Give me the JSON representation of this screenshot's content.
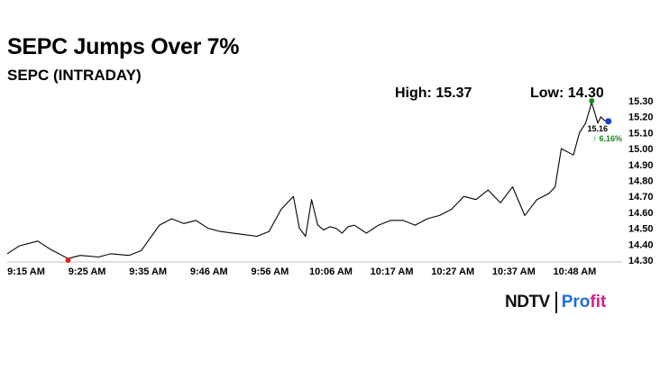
{
  "header": {
    "title": "SEPC Jumps Over 7%",
    "subtitle": "SEPC (INTRADAY)"
  },
  "stats": {
    "high_label": "High: 15.37",
    "low_label": "Low: 14.30"
  },
  "brand": {
    "ndtv": "NDTV",
    "profit_prefix": "Pro",
    "profit_suffix": "fit"
  },
  "colors": {
    "line": "#000000",
    "high_marker": "#1a8a1a",
    "low_marker": "#e02020",
    "last_marker": "#1a3ccf",
    "change_text": "#1a8a1a",
    "brand_blue": "#1e6fd9",
    "brand_pink": "#e0198a"
  },
  "chart_data": {
    "type": "line",
    "title": "SEPC (INTRADAY)",
    "xlabel": "",
    "ylabel": "",
    "ylim": [
      14.3,
      15.3
    ],
    "yticks": [
      "14.30",
      "14.40",
      "14.50",
      "14.60",
      "14.70",
      "14.80",
      "14.90",
      "15.00",
      "15.10",
      "15.20",
      "15.30"
    ],
    "xticks": [
      "9:15 AM",
      "9:25 AM",
      "9:35 AM",
      "9:46 AM",
      "9:56 AM",
      "10:06 AM",
      "10:17 AM",
      "10:27 AM",
      "10:37 AM",
      "10:48 AM"
    ],
    "grid": false,
    "x": [
      "9:15",
      "9:17",
      "9:20",
      "9:22",
      "9:25",
      "9:27",
      "9:30",
      "9:32",
      "9:35",
      "9:37",
      "9:40",
      "9:42",
      "9:44",
      "9:46",
      "9:48",
      "9:50",
      "9:52",
      "9:54",
      "9:56",
      "9:58",
      "10:00",
      "10:02",
      "10:03",
      "10:04",
      "10:05",
      "10:06",
      "10:07",
      "10:08",
      "10:09",
      "10:10",
      "10:11",
      "10:12",
      "10:14",
      "10:16",
      "10:18",
      "10:20",
      "10:22",
      "10:24",
      "10:26",
      "10:28",
      "10:30",
      "10:32",
      "10:34",
      "10:36",
      "10:38",
      "10:40",
      "10:42",
      "10:44",
      "10:45",
      "10:46",
      "10:48",
      "10:49",
      "10:50",
      "10:51",
      "10:52",
      "10:52.5",
      "10:53",
      "10:54"
    ],
    "values": [
      14.34,
      14.39,
      14.42,
      14.37,
      14.31,
      14.33,
      14.32,
      14.34,
      14.33,
      14.36,
      14.52,
      14.56,
      14.53,
      14.55,
      14.5,
      14.48,
      14.47,
      14.46,
      14.45,
      14.48,
      14.62,
      14.7,
      14.5,
      14.45,
      14.68,
      14.52,
      14.49,
      14.51,
      14.5,
      14.47,
      14.51,
      14.52,
      14.47,
      14.52,
      14.55,
      14.55,
      14.52,
      14.56,
      14.58,
      14.62,
      14.7,
      14.68,
      14.74,
      14.66,
      14.76,
      14.58,
      14.68,
      14.72,
      14.76,
      15.0,
      14.96,
      15.1,
      15.16,
      15.29,
      15.16,
      15.2,
      15.18,
      15.16
    ],
    "high_point": {
      "x": "10:51",
      "value": 15.3
    },
    "low_point": {
      "x": "9:25",
      "value": 14.3
    },
    "last_point": {
      "x": "10:53",
      "value": 15.16
    },
    "last_label": "15.16",
    "change_label": "↑ 6.16%"
  }
}
